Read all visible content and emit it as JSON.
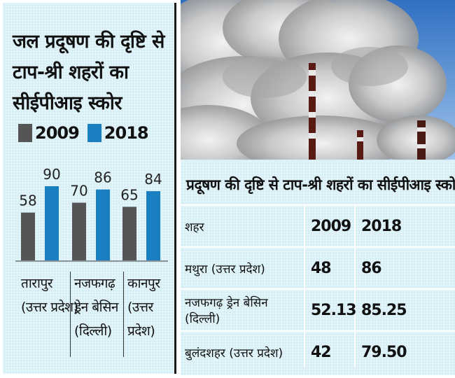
{
  "chart_data": {
    "type": "bar",
    "title": "जल प्रदूषण की दृष्टि से टाप-श्री शहरों का सीईपीआइ स्कोर",
    "categories": [
      "तारापुर (उत्तर प्रदेश)",
      "नजफगढ़ ड्रेन बेसिन (दिल्ली)",
      "कानपुर (उत्तर प्रदेश)"
    ],
    "category_lines": [
      [
        "तारापुर",
        "(उत्तर प्रदेश)"
      ],
      [
        "नजफगढ़",
        "ड्रेन बेसिन",
        "(दिल्ली)"
      ],
      [
        "कानपुर",
        "(उत्तर प्रदेश)"
      ]
    ],
    "series": [
      {
        "name": "2009",
        "values": [
          58,
          70,
          65
        ],
        "color": "#555555"
      },
      {
        "name": "2018",
        "values": [
          90,
          86,
          84
        ],
        "color": "#1a7fc1"
      }
    ],
    "ylim": [
      0,
      100
    ],
    "legend": "top-left"
  },
  "table": {
    "title": "प्रदूषण की दृष्टि से टाप-श्री शहरों का सीईपीआइ स्कोर",
    "headers": [
      "शहर",
      "2009",
      "2018"
    ],
    "rows": [
      [
        "मथुरा (उत्तर प्रदेश)",
        "48",
        "86"
      ],
      [
        "नजफगढ़ ड्रेन बेसिन (दिल्ली)",
        "52.13",
        "85.25"
      ],
      [
        "बुलंदशहर (उत्तर प्रदेश)",
        "42",
        "79.50"
      ]
    ]
  },
  "photo": {
    "icon": "factory-smokestacks-image"
  },
  "colors": {
    "panel_bg": "#d6eef6",
    "bar_2009": "#555555",
    "bar_2018": "#1a7fc1"
  }
}
